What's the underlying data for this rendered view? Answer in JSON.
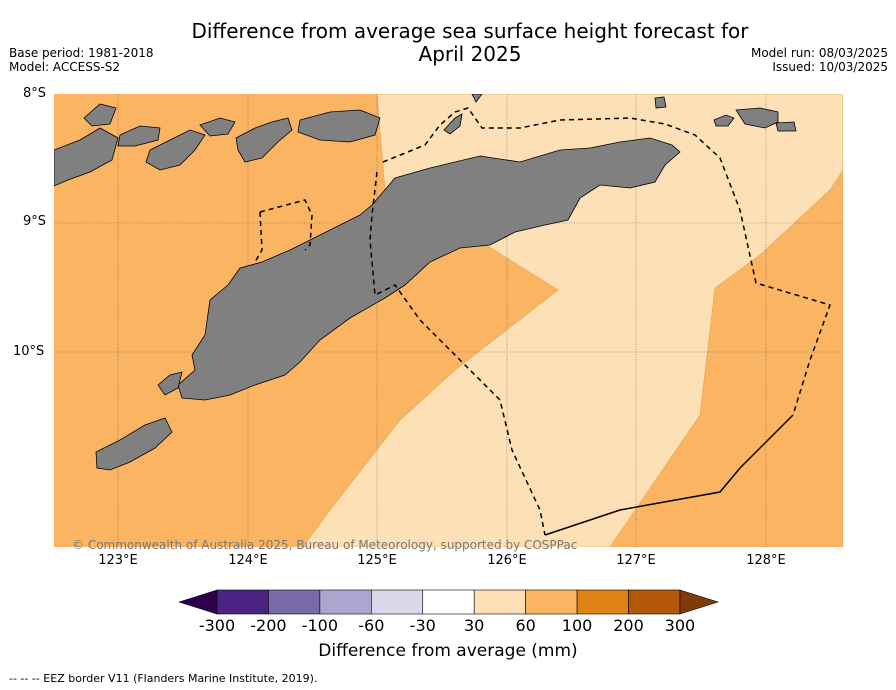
{
  "title_line1": "Difference from average sea surface height forecast for",
  "title_line2": "April 2025",
  "base_period": "Base period: 1981-2018",
  "model": "Model: ACCESS-S2",
  "model_run": "Model run: 08/03/2025",
  "issued": "Issued: 10/03/2025",
  "copyright": "© Commonwealth of Australia 2025, Bureau of Meteorology, supported by COSPPac",
  "footnote": "--  --  -- EEZ border V11 (Flanders Marine Institute, 2019).",
  "colorbar": {
    "title": "Difference from average (mm)",
    "ticks": [
      "-300",
      "-200",
      "-100",
      "-60",
      "-30",
      "30",
      "60",
      "100",
      "200",
      "300"
    ],
    "colors": [
      "#4b2483",
      "#7b6aa8",
      "#aba5cf",
      "#d8d8ea",
      "#ffffff",
      "#fde0b6",
      "#fbb462",
      "#e08214",
      "#b35806"
    ],
    "extend_low_color": "#2d004b",
    "extend_high_color": "#7f3b08"
  },
  "map": {
    "lat_labels": [
      "8°S",
      "9°S",
      "10°S"
    ],
    "lon_labels": [
      "123°E",
      "124°E",
      "125°E",
      "126°E",
      "127°E",
      "128°E"
    ],
    "land_color": "#808080",
    "fill_30_60": "#fde0b6",
    "fill_60_100": "#fbb462"
  }
}
